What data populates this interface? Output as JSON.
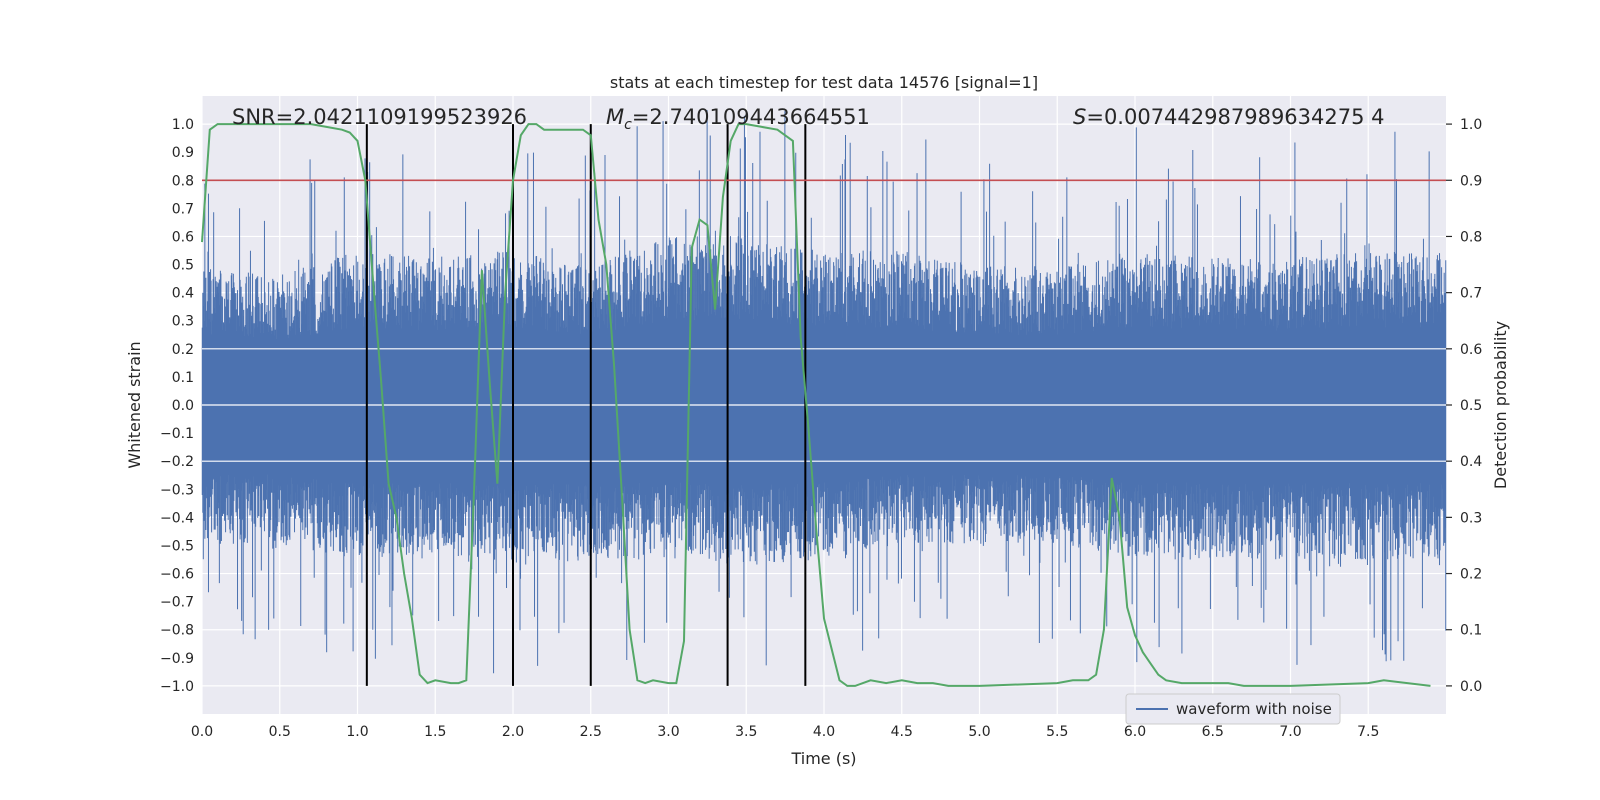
{
  "chart_data": {
    "type": "line",
    "title": "stats at each timestep for test data 14576 [signal=1]",
    "xlabel": "Time (s)",
    "ylabel_left": "Whitened strain",
    "ylabel_right": "Detection probability",
    "xlim": [
      0.0,
      8.0
    ],
    "ylim_left": [
      -1.1,
      1.1
    ],
    "ylim_right": [
      -0.05,
      1.05
    ],
    "x_ticks": [
      0.0,
      0.5,
      1.0,
      1.5,
      2.0,
      2.5,
      3.0,
      3.5,
      4.0,
      4.5,
      5.0,
      5.5,
      6.0,
      6.5,
      7.0,
      7.5
    ],
    "x_tick_labels": [
      "0.0",
      "0.5",
      "1.0",
      "1.5",
      "2.0",
      "2.5",
      "3.0",
      "3.5",
      "4.0",
      "4.5",
      "5.0",
      "5.5",
      "6.0",
      "6.5",
      "7.0",
      "7.5"
    ],
    "y_left_ticks": [
      1.0,
      0.9,
      0.8,
      0.7,
      0.6,
      0.5,
      0.4,
      0.3,
      0.2,
      0.1,
      0.0,
      -0.1,
      -0.2,
      -0.3,
      -0.4,
      -0.5,
      -0.6,
      -0.7,
      -0.8,
      -0.9,
      -1.0
    ],
    "y_left_tick_labels": [
      "1.0",
      "0.9",
      "0.8",
      "0.7",
      "0.6",
      "0.5",
      "0.4",
      "0.3",
      "0.2",
      "0.1",
      "0.0",
      "−0.1",
      "−0.2",
      "−0.3",
      "−0.4",
      "−0.5",
      "−0.6",
      "−0.7",
      "−0.8",
      "−0.9",
      "−1.0"
    ],
    "y_right_ticks": [
      1.0,
      0.9,
      0.8,
      0.7,
      0.6,
      0.5,
      0.4,
      0.3,
      0.2,
      0.1,
      0.0
    ],
    "y_right_tick_labels": [
      "1.0",
      "0.9",
      "0.8",
      "0.7",
      "0.6",
      "0.5",
      "0.4",
      "0.3",
      "0.2",
      "0.1",
      "0.0"
    ],
    "threshold": 0.9,
    "vertical_lines": [
      1.06,
      2.0,
      2.5,
      3.38,
      3.88
    ],
    "stats": {
      "snr": "SNR=2.0421109199523926",
      "mc_symbol": "M",
      "mc_sub": "c",
      "mc_value": "=2.740109443664551",
      "s_symbol": "S",
      "s_value": "=0.007442987989634275 4"
    },
    "legend": {
      "label": "waveform with noise",
      "position": "lower-right"
    },
    "series": [
      {
        "name": "detection probability",
        "axis": "right",
        "color": "#55a868",
        "x": [
          0.0,
          0.05,
          0.1,
          0.2,
          0.3,
          0.4,
          0.5,
          0.6,
          0.7,
          0.8,
          0.9,
          0.95,
          1.0,
          1.05,
          1.1,
          1.15,
          1.2,
          1.25,
          1.3,
          1.35,
          1.4,
          1.45,
          1.5,
          1.6,
          1.65,
          1.7,
          1.75,
          1.8,
          1.85,
          1.9,
          1.95,
          2.0,
          2.05,
          2.1,
          2.15,
          2.2,
          2.3,
          2.4,
          2.45,
          2.5,
          2.55,
          2.6,
          2.65,
          2.7,
          2.75,
          2.8,
          2.85,
          2.9,
          3.0,
          3.05,
          3.1,
          3.15,
          3.2,
          3.25,
          3.3,
          3.35,
          3.4,
          3.45,
          3.5,
          3.6,
          3.7,
          3.8,
          3.85,
          3.9,
          3.95,
          4.0,
          4.1,
          4.15,
          4.2,
          4.3,
          4.4,
          4.5,
          4.6,
          4.7,
          4.8,
          5.0,
          5.5,
          5.6,
          5.7,
          5.75,
          5.8,
          5.85,
          5.9,
          5.95,
          6.0,
          6.05,
          6.1,
          6.15,
          6.2,
          6.3,
          6.4,
          6.5,
          6.6,
          6.7,
          7.0,
          7.5,
          7.6,
          7.9
        ],
        "y": [
          0.79,
          0.99,
          1.0,
          1.0,
          1.0,
          1.0,
          1.0,
          1.0,
          1.0,
          0.995,
          0.99,
          0.985,
          0.97,
          0.9,
          0.72,
          0.55,
          0.36,
          0.3,
          0.2,
          0.12,
          0.02,
          0.005,
          0.01,
          0.005,
          0.005,
          0.01,
          0.35,
          0.74,
          0.54,
          0.36,
          0.7,
          0.9,
          0.98,
          1.0,
          1.0,
          0.99,
          0.99,
          0.99,
          0.99,
          0.98,
          0.83,
          0.75,
          0.57,
          0.34,
          0.1,
          0.01,
          0.005,
          0.01,
          0.005,
          0.005,
          0.08,
          0.78,
          0.83,
          0.82,
          0.67,
          0.87,
          0.97,
          1.0,
          1.0,
          0.995,
          0.99,
          0.97,
          0.62,
          0.46,
          0.28,
          0.12,
          0.01,
          0.0,
          0.0,
          0.01,
          0.005,
          0.01,
          0.005,
          0.005,
          0.0,
          0.0,
          0.005,
          0.01,
          0.01,
          0.02,
          0.1,
          0.37,
          0.3,
          0.14,
          0.09,
          0.06,
          0.04,
          0.02,
          0.01,
          0.005,
          0.005,
          0.005,
          0.005,
          0.0,
          0.0,
          0.005,
          0.01,
          0.0
        ]
      },
      {
        "name": "waveform with noise",
        "axis": "left",
        "color": "#4c72b0",
        "envelope": {
          "x": [
            0.0,
            0.5,
            1.0,
            1.5,
            2.0,
            2.5,
            3.0,
            3.5,
            4.0,
            4.5,
            5.0,
            5.5,
            6.0,
            6.5,
            7.0,
            7.5,
            8.0
          ],
          "upper": [
            0.45,
            0.42,
            0.5,
            0.48,
            0.5,
            0.45,
            0.55,
            0.55,
            0.5,
            0.5,
            0.45,
            0.45,
            0.5,
            0.48,
            0.48,
            0.5,
            0.5
          ],
          "lower": [
            -0.45,
            -0.45,
            -0.5,
            -0.5,
            -0.52,
            -0.5,
            -0.5,
            -0.52,
            -0.5,
            -0.45,
            -0.45,
            -0.45,
            -0.5,
            -0.5,
            -0.5,
            -0.5,
            -0.5
          ]
        }
      }
    ]
  }
}
